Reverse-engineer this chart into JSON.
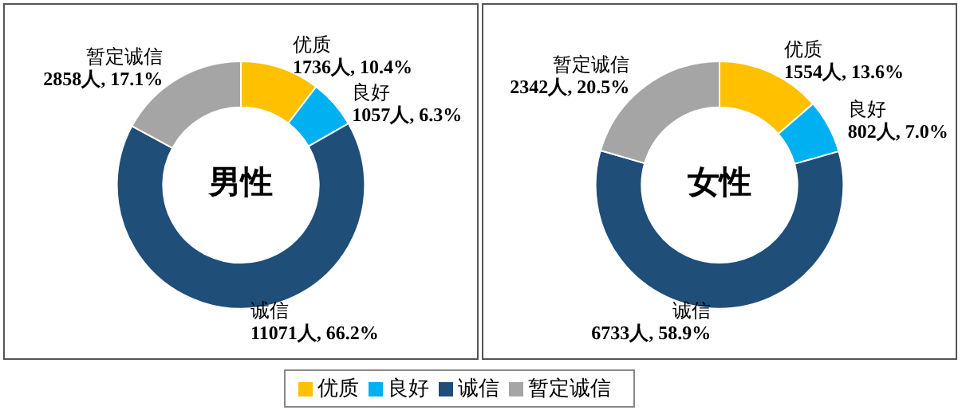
{
  "chart_data": [
    {
      "type": "donut",
      "title": "男性",
      "categories": [
        "优质",
        "良好",
        "诚信",
        "暂定诚信"
      ],
      "values": [
        1736,
        1057,
        11071,
        2858
      ],
      "colors": [
        "#ffc000",
        "#00b0f0",
        "#1f4e79",
        "#a5a5a5"
      ],
      "value_labels": [
        "1736人, 10.4%",
        "1057人, 6.3%",
        "11071人, 66.2%",
        "2858人, 17.1%"
      ],
      "legend": "bottom"
    },
    {
      "type": "donut",
      "title": "女性",
      "categories": [
        "优质",
        "良好",
        "诚信",
        "暂定诚信"
      ],
      "values": [
        1554,
        802,
        6733,
        2342
      ],
      "colors": [
        "#ffc000",
        "#00b0f0",
        "#1f4e79",
        "#a5a5a5"
      ],
      "value_labels": [
        "1554人, 13.6%",
        "802人, 7.0%",
        "6733人, 58.9%",
        "2342人, 20.5%"
      ]
    }
  ]
}
